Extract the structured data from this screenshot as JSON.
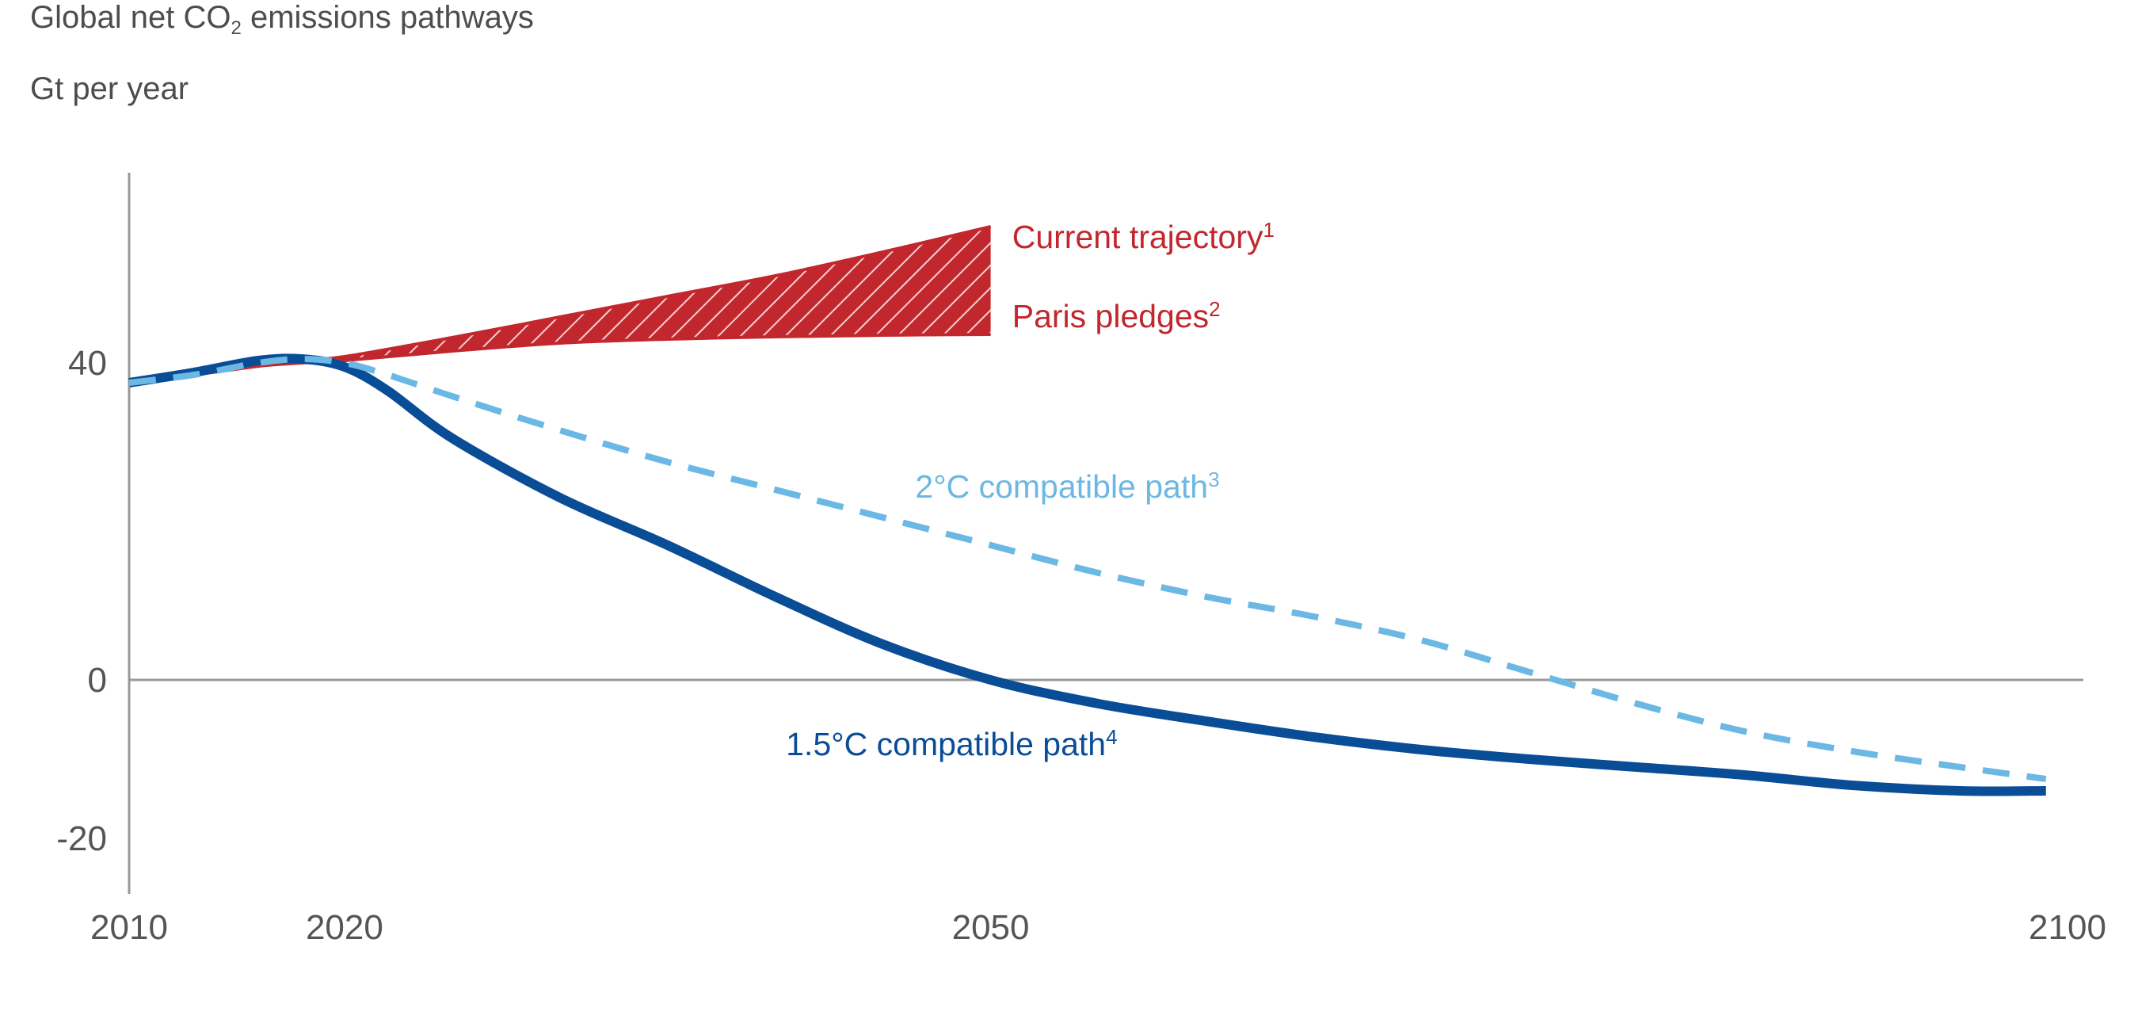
{
  "chart_data": {
    "type": "line",
    "title_main": "Global net CO",
    "title_sub": "2",
    "title_rest": " emissions pathways",
    "ylabel": "Gt per year",
    "xlim": [
      2010,
      2100
    ],
    "ylim": [
      -27,
      64
    ],
    "x_ticks": [
      {
        "value": 2010,
        "label": "2010"
      },
      {
        "value": 2020,
        "label": "2020"
      },
      {
        "value": 2050,
        "label": "2050"
      },
      {
        "value": 2100,
        "label": "2100"
      }
    ],
    "y_ticks": [
      {
        "value": 40,
        "label": "40"
      },
      {
        "value": 0,
        "label": "0"
      },
      {
        "value": -20,
        "label": "-20"
      }
    ],
    "colors": {
      "current": "#c1272d",
      "two_deg": "#6bb8e4",
      "one_five_deg": "#0a4d97",
      "axis": "#999999"
    },
    "series": [
      {
        "key": "current_trajectory",
        "name": "Current trajectory",
        "footnote": "1",
        "x": [
          2010,
          2013,
          2016,
          2018,
          2020,
          2025,
          2030,
          2035,
          2040,
          2045,
          2050
        ],
        "values": [
          37.5,
          38.5,
          39.6,
          40.3,
          40.8,
          43.2,
          45.8,
          48.4,
          51.0,
          54.0,
          57.2
        ]
      },
      {
        "key": "paris_pledges",
        "name": "Paris pledges",
        "footnote": "2",
        "x": [
          2010,
          2013,
          2016,
          2018,
          2020,
          2025,
          2030,
          2035,
          2040,
          2045,
          2050
        ],
        "values": [
          37.5,
          38.5,
          39.6,
          40.0,
          40.3,
          41.5,
          42.5,
          43.0,
          43.3,
          43.5,
          43.6
        ]
      },
      {
        "key": "two_degree_path",
        "name": "2°C compatible path",
        "footnote": "3",
        "x": [
          2010,
          2013,
          2016,
          2018,
          2020,
          2022,
          2025,
          2030,
          2035,
          2040,
          2045,
          2050,
          2055,
          2060,
          2065,
          2070,
          2075,
          2080,
          2085,
          2090,
          2095,
          2099
        ],
        "values": [
          37.5,
          38.5,
          40.0,
          40.5,
          40.0,
          38.5,
          35.8,
          31.5,
          27.5,
          24.0,
          20.5,
          17.0,
          13.5,
          10.5,
          8.0,
          5.0,
          1.0,
          -3.0,
          -6.5,
          -9.0,
          -11.0,
          -12.5
        ]
      },
      {
        "key": "one_five_degree_path",
        "name": "1.5°C compatible path",
        "footnote": "4",
        "x": [
          2010,
          2013,
          2016,
          2018,
          2020,
          2022,
          2025,
          2030,
          2035,
          2040,
          2045,
          2050,
          2055,
          2060,
          2065,
          2070,
          2075,
          2080,
          2085,
          2090,
          2095,
          2099
        ],
        "values": [
          37.5,
          38.8,
          40.3,
          40.5,
          39.5,
          36.5,
          30.5,
          23.0,
          17.0,
          10.5,
          4.5,
          0.0,
          -3.0,
          -5.2,
          -7.2,
          -8.8,
          -10.0,
          -11.0,
          -12.0,
          -13.3,
          -14.0,
          -14.0
        ]
      }
    ],
    "annotations": [
      {
        "key": "current_trajectory",
        "text": "Current trajectory",
        "sup": "1",
        "x": 2051,
        "y": 54.5,
        "color": "#c1272d"
      },
      {
        "key": "paris_pledges",
        "text": "Paris pledges",
        "sup": "2",
        "x": 2051,
        "y": 44.5,
        "color": "#c1272d"
      },
      {
        "key": "two_degree_path",
        "text": "2°C compatible path",
        "sup": "3",
        "x": 2046.5,
        "y": 23.0,
        "color": "#6bb8e4"
      },
      {
        "key": "one_five_degree_path",
        "text": "1.5°C compatible path",
        "sup": "4",
        "x": 2040.5,
        "y": -9.5,
        "color": "#0a4d97"
      }
    ]
  }
}
